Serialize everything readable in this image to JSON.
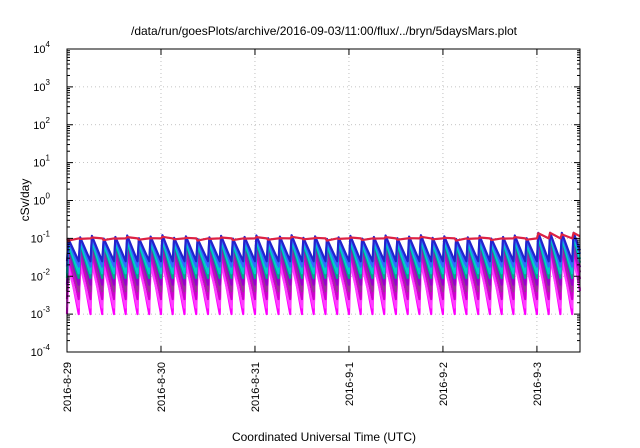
{
  "chart_data": {
    "type": "line",
    "title": "/data/run/goesPlots/archive/2016-09-03/11:00/flux/../bryn/5daysMars.plot",
    "xlabel": "Coordinated Universal Time (UTC)",
    "ylabel": "cSv/day",
    "y_scale": "log",
    "ylim": [
      0.0001,
      10000
    ],
    "xlim": [
      "2016-08-29T00:00",
      "2016-09-03T11:00"
    ],
    "x_ticks": [
      "2016-8-29",
      "2016-8-30",
      "2016-8-31",
      "2016-9-1",
      "2016-9-2",
      "2016-9-3"
    ],
    "y_ticks": [
      {
        "base": "10",
        "exp": "-4"
      },
      {
        "base": "10",
        "exp": "-3"
      },
      {
        "base": "10",
        "exp": "-2"
      },
      {
        "base": "10",
        "exp": "-1"
      },
      {
        "base": "10",
        "exp": "0"
      },
      {
        "base": "10",
        "exp": "1"
      },
      {
        "base": "10",
        "exp": "2"
      },
      {
        "base": "10",
        "exp": "3"
      },
      {
        "base": "10",
        "exp": "4"
      }
    ],
    "grid": true,
    "legend": "none",
    "pattern": {
      "description": "sawtooth",
      "period_days": 0.125,
      "peak_level_top": 0.1,
      "trough_level_bottom": 0.001
    },
    "series": [
      {
        "color": "#ff00ff",
        "peak": 0.03,
        "trough": 0.001
      },
      {
        "color": "#ff40ff",
        "peak": 0.02,
        "trough": 0.0015
      },
      {
        "color": "#cc00cc",
        "peak": 0.045,
        "trough": 0.0025
      },
      {
        "color": "#993399",
        "peak": 0.06,
        "trough": 0.004
      },
      {
        "color": "#9900cc",
        "peak": 0.07,
        "trough": 0.006
      },
      {
        "color": "#00aa88",
        "peak": 0.075,
        "trough": 0.009
      },
      {
        "color": "#00cccc",
        "peak": 0.085,
        "trough": 0.012
      },
      {
        "color": "#3366ff",
        "peak": 0.1,
        "trough": 0.018
      },
      {
        "color": "#2222cc",
        "peak": 0.11,
        "trough": 0.025
      },
      {
        "color": "#dd2244",
        "peak": 0.1,
        "trough": 0.1
      }
    ]
  }
}
